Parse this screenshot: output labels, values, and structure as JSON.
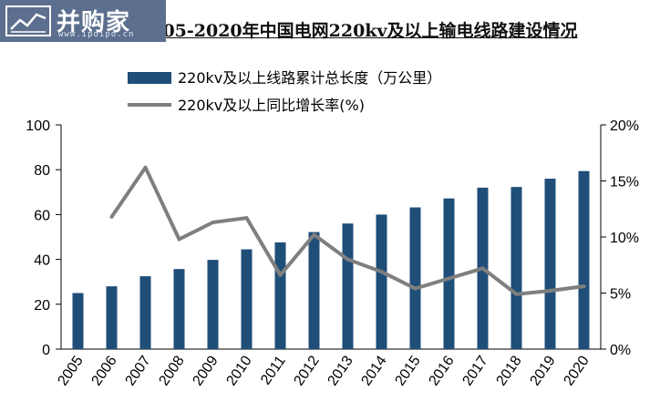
{
  "logo": {
    "text": "并购家",
    "url": "www.ipoipo.cn"
  },
  "chart_data": {
    "type": "bar",
    "title": "2005-2020年中国电网220kv及以上输电线路建设情况",
    "categories": [
      "2005",
      "2006",
      "2007",
      "2008",
      "2009",
      "2010",
      "2011",
      "2012",
      "2013",
      "2014",
      "2015",
      "2016",
      "2017",
      "2018",
      "2019",
      "2020"
    ],
    "series": [
      {
        "name": "220kv及以上线路累计总长度（万公里）",
        "type": "bar",
        "axis": "left",
        "color": "#1f4e79",
        "values": [
          25.0,
          28.0,
          32.5,
          35.7,
          39.8,
          44.5,
          47.6,
          52.2,
          56.0,
          60.0,
          63.2,
          67.2,
          72.0,
          72.3,
          76.0,
          79.4
        ]
      },
      {
        "name": "220kv及以上同比增长率(%)",
        "type": "line",
        "axis": "right",
        "color": "#7f7f7f",
        "values": [
          null,
          11.8,
          16.2,
          9.8,
          11.3,
          11.7,
          6.6,
          10.2,
          8.0,
          6.9,
          5.4,
          6.3,
          7.2,
          4.9,
          5.2,
          5.6
        ]
      }
    ],
    "y_left": {
      "min": 0,
      "max": 100,
      "ticks": [
        "0",
        "20",
        "40",
        "60",
        "80",
        "100"
      ]
    },
    "y_right": {
      "min": 0,
      "max": 20,
      "ticks": [
        "0%",
        "5%",
        "10%",
        "15%",
        "20%"
      ]
    },
    "grid": false,
    "legend_position": "top"
  }
}
